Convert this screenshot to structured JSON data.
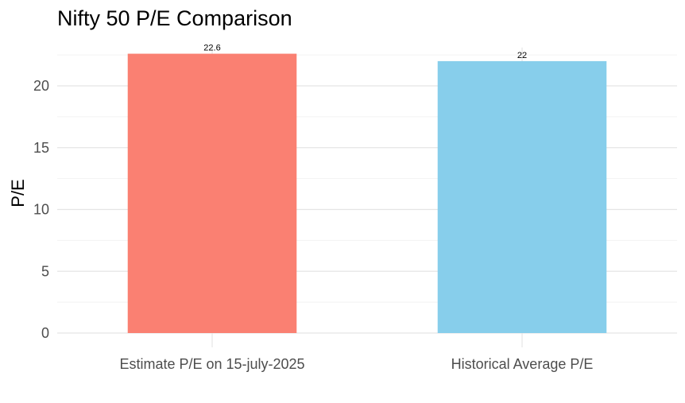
{
  "chart_data": {
    "type": "bar",
    "title": "Nifty 50 P/E Comparison",
    "xlabel": "",
    "ylabel": "P/E",
    "categories": [
      "Estimate P/E on 15-july-2025",
      "Historical Average P/E"
    ],
    "values": [
      22.6,
      22
    ],
    "data_labels": [
      "22.6",
      "22"
    ],
    "bar_colors": [
      "#FA8072",
      "#87CEEB"
    ],
    "yticks": [
      0,
      5,
      10,
      15,
      20
    ],
    "ylim": [
      0,
      23.1
    ],
    "grid": true,
    "legend": "none"
  }
}
